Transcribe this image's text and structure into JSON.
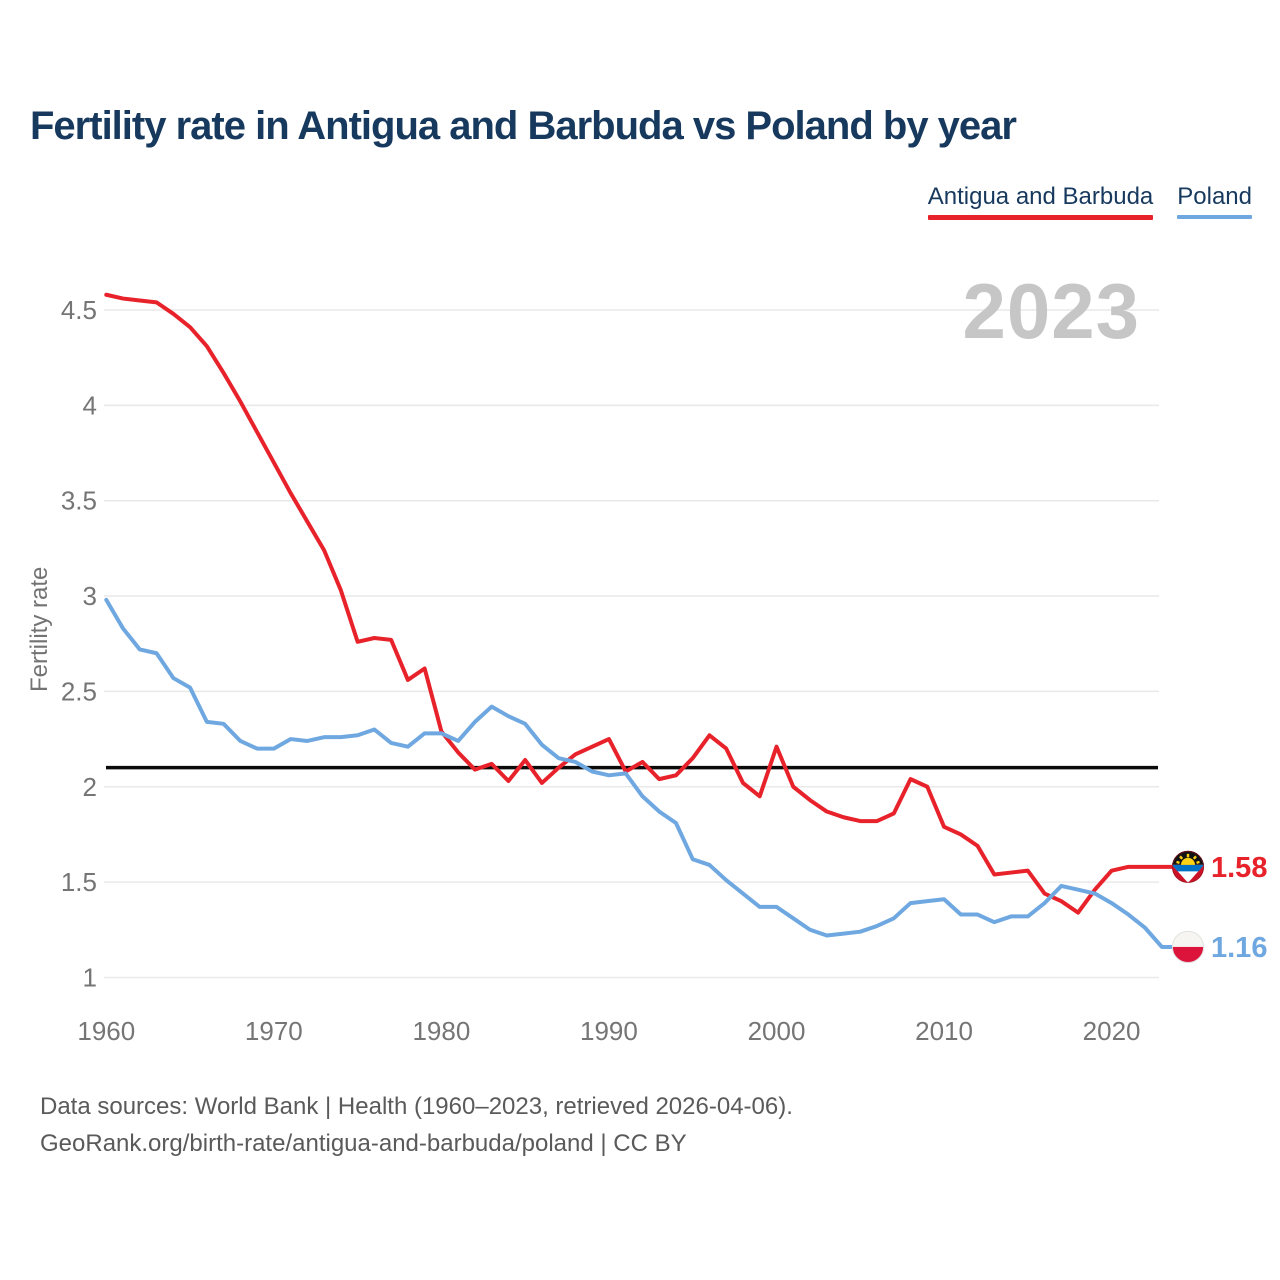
{
  "title": "Fertility rate in Antigua and Barbuda vs Poland by year",
  "watermark_year": "2023",
  "legend": {
    "items": [
      {
        "label": "Antigua and Barbuda",
        "color": "#e8222a"
      },
      {
        "label": "Poland",
        "color": "#6fa8e0"
      }
    ]
  },
  "y_axis": {
    "label": "Fertility rate",
    "ticks": [
      "4.5",
      "4",
      "3.5",
      "3",
      "2.5",
      "2",
      "1.5",
      "1"
    ],
    "tick_values": [
      4.5,
      4,
      3.5,
      3,
      2.5,
      2,
      1.5,
      1
    ]
  },
  "x_axis": {
    "ticks": [
      "1960",
      "1970",
      "1980",
      "1990",
      "2000",
      "2010",
      "2020"
    ],
    "tick_values": [
      1960,
      1970,
      1980,
      1990,
      2000,
      2010,
      2020
    ]
  },
  "reference_line": {
    "value": 2.1,
    "color": "#0b0b0b"
  },
  "end_labels": [
    {
      "series": "Antigua and Barbuda",
      "value": "1.58",
      "color": "#e8222a",
      "flag": "antigua-and-barbuda-flag"
    },
    {
      "series": "Poland",
      "value": "1.16",
      "color": "#6fa8e0",
      "flag": "poland-flag"
    }
  ],
  "footer": {
    "line1": "Data sources: World Bank | Health (1960–2023, retrieved 2026-04-06).",
    "line2": "GeoRank.org/birth-rate/antigua-and-barbuda/poland | CC BY"
  },
  "chart_data": {
    "type": "line",
    "title": "Fertility rate in Antigua and Barbuda vs Poland by year",
    "xlabel": "",
    "ylabel": "Fertility rate",
    "x_range": [
      1960,
      2023
    ],
    "ylim": [
      1,
      4.6
    ],
    "grid": "horizontal",
    "legend_position": "top-right",
    "reference_line": 2.1,
    "current_year_label": "2023",
    "x": [
      1960,
      1961,
      1962,
      1963,
      1964,
      1965,
      1966,
      1967,
      1968,
      1969,
      1970,
      1971,
      1972,
      1973,
      1974,
      1975,
      1976,
      1977,
      1978,
      1979,
      1980,
      1981,
      1982,
      1983,
      1984,
      1985,
      1986,
      1987,
      1988,
      1989,
      1990,
      1991,
      1992,
      1993,
      1994,
      1995,
      1996,
      1997,
      1998,
      1999,
      2000,
      2001,
      2002,
      2003,
      2004,
      2005,
      2006,
      2007,
      2008,
      2009,
      2010,
      2011,
      2012,
      2013,
      2014,
      2015,
      2016,
      2017,
      2018,
      2019,
      2020,
      2021,
      2022,
      2023
    ],
    "series": [
      {
        "name": "Antigua and Barbuda",
        "color": "#e8222a",
        "end_value": 1.58,
        "values": [
          4.58,
          4.56,
          4.55,
          4.54,
          4.48,
          4.41,
          4.31,
          4.17,
          4.02,
          3.86,
          3.7,
          3.54,
          3.39,
          3.24,
          3.03,
          2.76,
          2.78,
          2.77,
          2.56,
          2.62,
          2.29,
          2.18,
          2.09,
          2.12,
          2.03,
          2.14,
          2.02,
          2.1,
          2.17,
          2.21,
          2.25,
          2.08,
          2.13,
          2.04,
          2.06,
          2.15,
          2.27,
          2.2,
          2.02,
          1.95,
          2.21,
          2.0,
          1.93,
          1.87,
          1.84,
          1.82,
          1.82,
          1.86,
          2.04,
          2.0,
          1.79,
          1.75,
          1.69,
          1.54,
          1.55,
          1.56,
          1.44,
          1.4,
          1.34,
          1.46,
          1.56,
          1.58,
          1.58,
          1.58
        ]
      },
      {
        "name": "Poland",
        "color": "#6fa8e0",
        "end_value": 1.16,
        "values": [
          2.98,
          2.83,
          2.72,
          2.7,
          2.57,
          2.52,
          2.34,
          2.33,
          2.24,
          2.2,
          2.2,
          2.25,
          2.24,
          2.26,
          2.26,
          2.27,
          2.3,
          2.23,
          2.21,
          2.28,
          2.28,
          2.24,
          2.34,
          2.42,
          2.37,
          2.33,
          2.22,
          2.15,
          2.13,
          2.08,
          2.06,
          2.07,
          1.95,
          1.87,
          1.81,
          1.62,
          1.59,
          1.51,
          1.44,
          1.37,
          1.37,
          1.31,
          1.25,
          1.22,
          1.23,
          1.24,
          1.27,
          1.31,
          1.39,
          1.4,
          1.41,
          1.33,
          1.33,
          1.29,
          1.32,
          1.32,
          1.39,
          1.48,
          1.46,
          1.44,
          1.39,
          1.33,
          1.26,
          1.16
        ]
      }
    ]
  }
}
